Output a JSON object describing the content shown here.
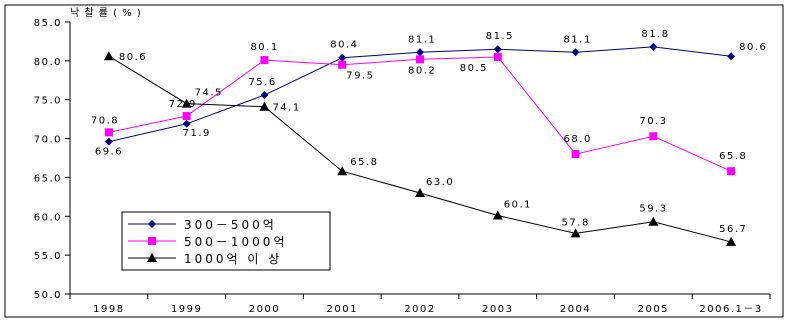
{
  "chart_data": {
    "type": "line",
    "ylabel": "낙 찰 률 ( % )",
    "ylim": [
      50,
      85
    ],
    "yticks": [
      "50.0",
      "55.0",
      "60.0",
      "65.0",
      "70.0",
      "75.0",
      "80.0",
      "85.0"
    ],
    "categories": [
      "1998",
      "1999",
      "2000",
      "2001",
      "2002",
      "2003",
      "2004",
      "2005",
      "2006.1－3"
    ],
    "grid": false,
    "legend_position": "bottom-left",
    "series": [
      {
        "name": "300－500억",
        "color": "#000080",
        "marker": "diamond",
        "values": [
          69.6,
          71.9,
          75.6,
          80.4,
          81.1,
          81.5,
          81.1,
          81.8,
          80.6
        ],
        "labels": [
          "69.6",
          "71.9",
          "75.6",
          "80.4",
          "81.1",
          "81.5",
          "81.1",
          "81.8",
          "80.6"
        ]
      },
      {
        "name": "500－1000억",
        "color": "#ff00ff",
        "marker": "square",
        "values": [
          70.8,
          72.9,
          80.1,
          79.5,
          80.2,
          80.5,
          68.0,
          70.3,
          65.8
        ],
        "labels": [
          "70.8",
          "72.9",
          "80.1",
          "79.5",
          "80.2",
          "80.5",
          "68.0",
          "70.3",
          "65.8"
        ]
      },
      {
        "name": "1000억 이 상",
        "color": "#000000",
        "marker": "triangle",
        "values": [
          80.6,
          74.5,
          74.1,
          65.8,
          63.0,
          60.1,
          57.8,
          59.3,
          56.7
        ],
        "labels": [
          "80.6",
          "74.5",
          "74.1",
          "65.8",
          "63.0",
          "60.1",
          "57.8",
          "59.3",
          "56.7"
        ]
      }
    ]
  }
}
